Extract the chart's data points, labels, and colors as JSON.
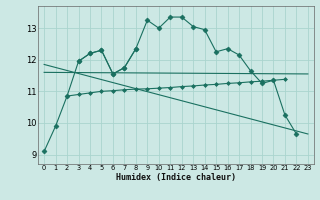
{
  "xlabel": "Humidex (Indice chaleur)",
  "bg_color": "#cce8e4",
  "grid_color": "#aad4ce",
  "line_color": "#1a7060",
  "xlim": [
    -0.5,
    23.5
  ],
  "ylim": [
    8.7,
    13.7
  ],
  "yticks": [
    9,
    10,
    11,
    12,
    13
  ],
  "xticks": [
    0,
    1,
    2,
    3,
    4,
    5,
    6,
    7,
    8,
    9,
    10,
    11,
    12,
    13,
    14,
    15,
    16,
    17,
    18,
    19,
    20,
    21,
    22,
    23
  ],
  "series": [
    {
      "x": [
        0,
        1,
        2,
        3,
        4,
        5,
        6,
        7,
        8,
        9,
        10,
        11,
        12,
        13,
        14,
        15,
        16,
        17,
        18,
        19,
        20,
        21,
        22
      ],
      "y": [
        9.1,
        9.9,
        10.85,
        11.95,
        12.2,
        12.3,
        11.55,
        11.75,
        12.35,
        13.25,
        13.0,
        13.35,
        13.35,
        13.05,
        12.95,
        12.25,
        12.35,
        12.15,
        11.65,
        11.25,
        11.35,
        10.25,
        9.65
      ],
      "marker": "D",
      "markersize": 2.5
    },
    {
      "x": [
        3,
        4,
        5,
        6,
        7,
        8
      ],
      "y": [
        11.95,
        12.2,
        12.3,
        11.55,
        11.75,
        12.35
      ],
      "marker": "D",
      "markersize": 2.5
    },
    {
      "x": [
        2,
        3,
        4,
        5,
        6,
        7,
        8,
        9,
        10,
        11,
        12,
        13,
        14,
        15,
        16,
        17,
        18,
        19,
        20,
        21
      ],
      "y": [
        10.85,
        10.9,
        10.95,
        11.0,
        11.02,
        11.05,
        11.07,
        11.08,
        11.1,
        11.12,
        11.15,
        11.17,
        11.2,
        11.22,
        11.25,
        11.27,
        11.3,
        11.32,
        11.35,
        11.38
      ],
      "marker": "D",
      "markersize": 2.0
    },
    {
      "x": [
        0,
        23
      ],
      "y": [
        11.85,
        9.65
      ],
      "marker": null,
      "markersize": 0
    },
    {
      "x": [
        0,
        23
      ],
      "y": [
        11.6,
        11.55
      ],
      "marker": null,
      "markersize": 0
    }
  ]
}
